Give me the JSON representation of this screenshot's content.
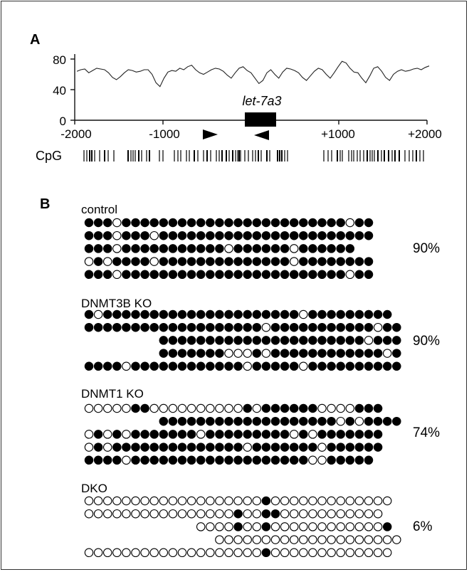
{
  "panel_a": {
    "label": "A",
    "y_ticks": [
      "80",
      "40",
      "0"
    ],
    "x_ticks": [
      "-2000",
      "-1000",
      "+1000",
      "+2000"
    ],
    "gene_label": "let-7a3",
    "cpg_label": "CpG",
    "trace": [
      64,
      66,
      67,
      62,
      65,
      68,
      67,
      66,
      62,
      56,
      53,
      57,
      62,
      66,
      65,
      63,
      64,
      66,
      66,
      60,
      49,
      44,
      55,
      63,
      65,
      64,
      68,
      66,
      70,
      72,
      66,
      62,
      60,
      63,
      66,
      68,
      67,
      64,
      59,
      55,
      62,
      68,
      70,
      65,
      62,
      55,
      48,
      52,
      62,
      66,
      60,
      55,
      63,
      68,
      67,
      65,
      62,
      56,
      52,
      58,
      64,
      68,
      66,
      60,
      55,
      62,
      70,
      77,
      75,
      68,
      63,
      62,
      55,
      49,
      58,
      68,
      70,
      64,
      56,
      52,
      60,
      64,
      66,
      64,
      65,
      67,
      68,
      66,
      69,
      71
    ]
  },
  "panel_b": {
    "label": "B",
    "groups": [
      {
        "name": "control",
        "percent": "90%",
        "rows": [
          "●●●○●●●●●●●●●●●●●●●●●●●●●●●●○●●",
          "●●●○●●●○●●●●●●●●●●●●●●●●●●●●●●●",
          "●●●○●●●●●●●●●●●○●●●●●●○●●●●●●",
          "○●○●●●●○●●●●●●●●●●●●●●○●●●●●●●●",
          "●●●○●●●●●●●●●●●●●●●●●●●●●●●●○●●"
        ]
      },
      {
        "name": "DNMT3B KO",
        "percent": "90%",
        "rows": [
          "●○●●●●●●●●●●●●●●●●●●●●●○●●●●●●●●●",
          "●●●●●●●●●●●●●●●●●●●○●●●●●●●●●●●○●●",
          "--------●●●●●●●●●●●●●●●●●●●●●●○●●●●●●",
          "--------●●●●●●●○○○●○●●●●●●●●●●●●○●●●",
          "●●●●○●●●●●●●●●●●●○●●●●●○●●●●●●●●●●"
        ]
      },
      {
        "name": "DNMT1 KO",
        "percent": "74%",
        "rows": [
          "○○○○○●●○○○○○○○○○○●○●●●●●●○○○○●●●",
          "--------●●●●●●●●●●●●●●●●●●●○●○●●●●●●",
          "○●○●○●●●●●●●○●●●●●●●●●○●○●●●●●●●",
          "○●○●●●●●●●●●●●●●●○●●●●●●●○●●●●●●",
          "●●●●○●●●●●●●●●●●●●●●●●●●○○●●●●●"
        ]
      },
      {
        "name": "DKO",
        "percent": "6%",
        "rows": [
          "○○○○○○○○○○○○○○○○○○○●○○○○○○○○○○○○○",
          "○○○○○○○○○○○○○○○○●○○●●○○○○○○○○○○○",
          "------------○○○○●○○●○○○○○○○○○○○○●",
          "--------------○○○○○○○○○○○○○○○○○○○○",
          "○○○○○○○○○○○○○○○○○○○●○○○○○○○○○○○○○"
        ]
      }
    ]
  }
}
